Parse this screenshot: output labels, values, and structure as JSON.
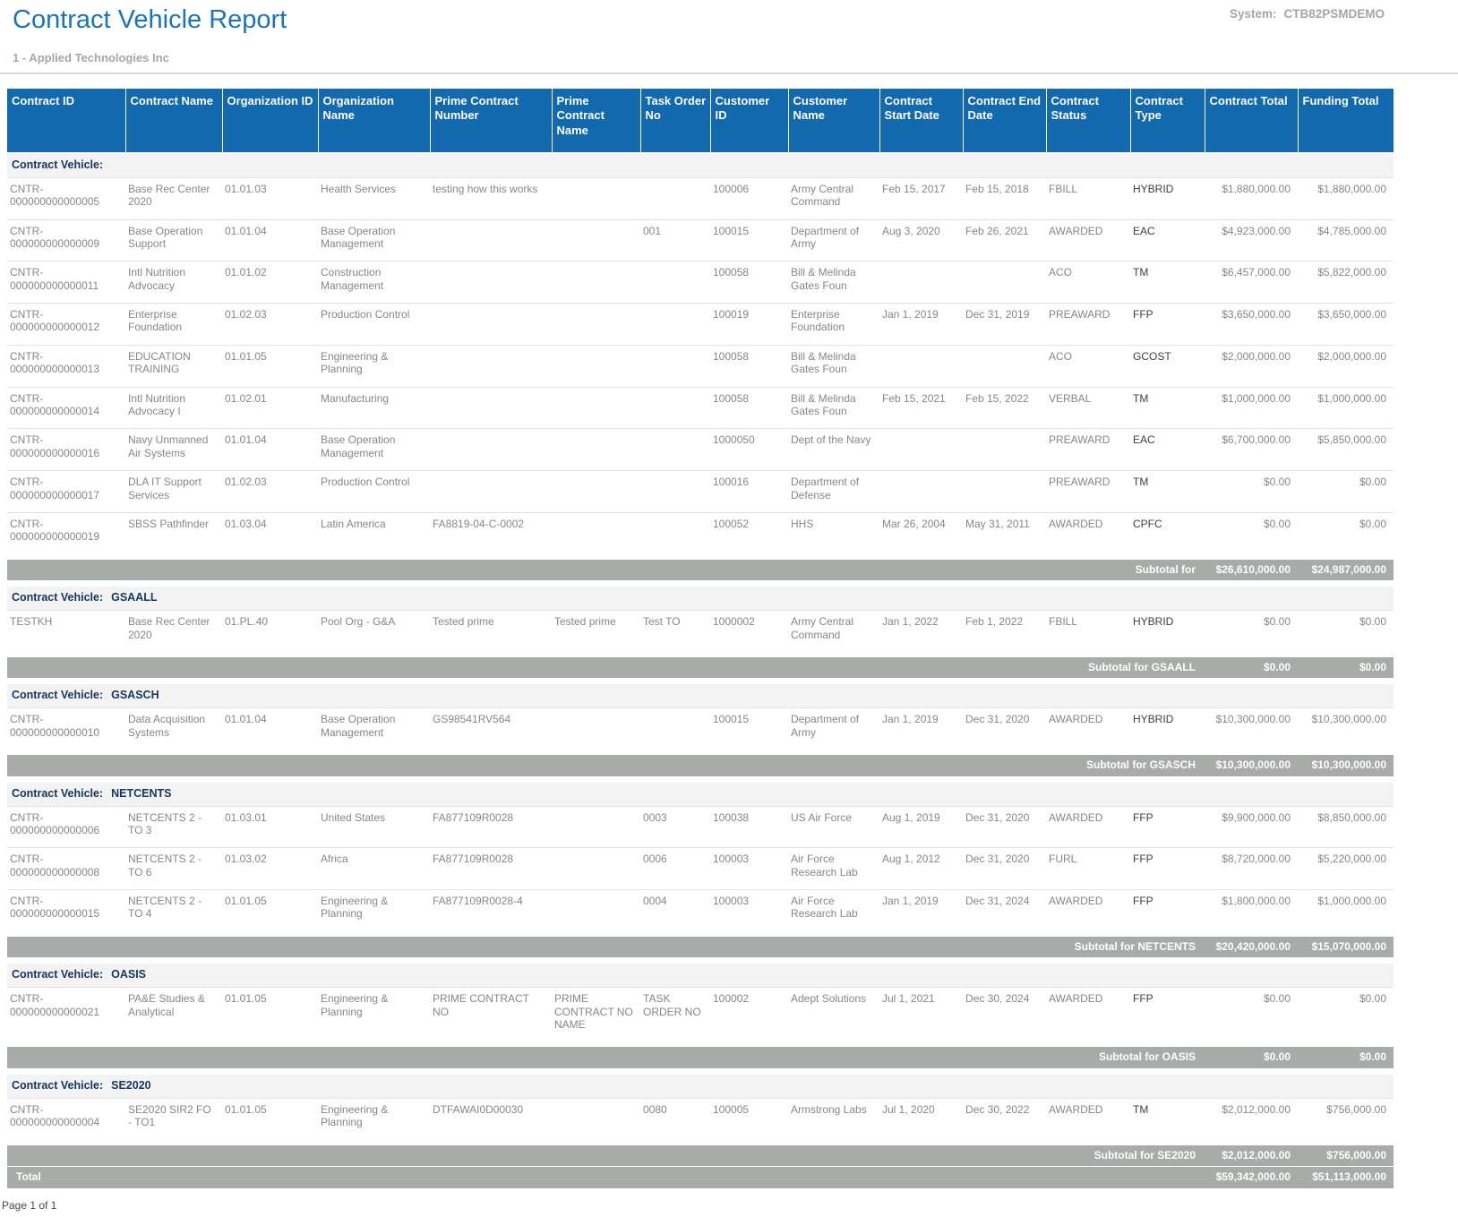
{
  "page": {
    "title": "Contract Vehicle Report",
    "system_label": "System:",
    "system_value": "CTB82PSMDEMO",
    "subtitle": "1 - Applied Technologies Inc",
    "footer": "Page 1 of 1"
  },
  "colors": {
    "title_blue": "#1B75BC",
    "header_blue": "#1269AD",
    "subtotal_gray": "#A8ACA8",
    "group_header_navy": "#16365C",
    "body_text_gray": "#878787"
  },
  "table": {
    "group_label": "Contract Vehicle:",
    "total_label": "Total",
    "columns": [
      "Contract ID",
      "Contract Name",
      "Organization ID",
      "Organization Name",
      "Prime Contract Number",
      "Prime Contract Name",
      "Task Order No",
      "Customer ID",
      "Customer Name",
      "Contract Start Date",
      "Contract End Date",
      "Contract Status",
      "Contract Type",
      "Contract Total",
      "Funding Total"
    ],
    "groups": [
      {
        "vehicle": "",
        "subtotal_label": "Subtotal for",
        "subtotal": [
          "$26,610,000.00",
          "$24,987,000.00"
        ],
        "rows": [
          [
            "CNTR-000000000000005",
            "Base Rec Center 2020",
            "01.01.03",
            "Health Services",
            "testing how this works",
            "",
            "",
            "100006",
            "Army Central Command",
            "Feb 15, 2017",
            "Feb 15, 2018",
            "FBILL",
            "HYBRID",
            "$1,880,000.00",
            "$1,880,000.00"
          ],
          [
            "CNTR-000000000000009",
            "Base Operation Support",
            "01.01.04",
            "Base Operation Management",
            "",
            "",
            "001",
            "100015",
            "Department of Army",
            "Aug 3, 2020",
            "Feb 26, 2021",
            "AWARDED",
            "EAC",
            "$4,923,000.00",
            "$4,785,000.00"
          ],
          [
            "CNTR-000000000000011",
            "Intl Nutrition Advocacy",
            "01.01.02",
            "Construction Management",
            "",
            "",
            "",
            "100058",
            "Bill & Melinda Gates Foun",
            "",
            "",
            "ACO",
            "TM",
            "$6,457,000.00",
            "$5,822,000.00"
          ],
          [
            "CNTR-000000000000012",
            "Enterprise Foundation",
            "01.02.03",
            "Production Control",
            "",
            "",
            "",
            "100019",
            "Enterprise Foundation",
            "Jan 1, 2019",
            "Dec 31, 2019",
            "PREAWARD",
            "FFP",
            "$3,650,000.00",
            "$3,650,000.00"
          ],
          [
            "CNTR-000000000000013",
            "EDUCATION TRAINING",
            "01.01.05",
            "Engineering & Planning",
            "",
            "",
            "",
            "100058",
            "Bill & Melinda Gates Foun",
            "",
            "",
            "ACO",
            "GCOST",
            "$2,000,000.00",
            "$2,000,000.00"
          ],
          [
            "CNTR-000000000000014",
            "Intl Nutrition Advocacy I",
            "01.02.01",
            "Manufacturing",
            "",
            "",
            "",
            "100058",
            "Bill & Melinda Gates Foun",
            "Feb 15, 2021",
            "Feb 15, 2022",
            "VERBAL",
            "TM",
            "$1,000,000.00",
            "$1,000,000.00"
          ],
          [
            "CNTR-000000000000016",
            "Navy Unmanned Air Systems",
            "01.01.04",
            "Base Operation Management",
            "",
            "",
            "",
            "1000050",
            "Dept of the Navy",
            "",
            "",
            "PREAWARD",
            "EAC",
            "$6,700,000.00",
            "$5,850,000.00"
          ],
          [
            "CNTR-000000000000017",
            "DLA IT Support Services",
            "01.02.03",
            "Production Control",
            "",
            "",
            "",
            "100016",
            "Department of Defense",
            "",
            "",
            "PREAWARD",
            "TM",
            "$0.00",
            "$0.00"
          ],
          [
            "CNTR-000000000000019",
            "SBSS Pathfinder",
            "01.03.04",
            "Latin America",
            "FA8819-04-C-0002",
            "",
            "",
            "100052",
            "HHS",
            "Mar 26, 2004",
            "May 31, 2011",
            "AWARDED",
            "CPFC",
            "$0.00",
            "$0.00"
          ]
        ]
      },
      {
        "vehicle": "GSAALL",
        "subtotal_label": "Subtotal for GSAALL",
        "subtotal": [
          "$0.00",
          "$0.00"
        ],
        "rows": [
          [
            "TESTKH",
            "Base Rec Center 2020",
            "01.PL.40",
            "Pool Org - G&A",
            "Tested prime",
            "Tested prime",
            "Test TO",
            "1000002",
            "Army Central Command",
            "Jan 1, 2022",
            "Feb 1, 2022",
            "FBILL",
            "HYBRID",
            "$0.00",
            "$0.00"
          ]
        ]
      },
      {
        "vehicle": "GSASCH",
        "subtotal_label": "Subtotal for GSASCH",
        "subtotal": [
          "$10,300,000.00",
          "$10,300,000.00"
        ],
        "rows": [
          [
            "CNTR-000000000000010",
            "Data Acquisition Systems",
            "01.01.04",
            "Base Operation Management",
            "GS98541RV564",
            "",
            "",
            "100015",
            "Department of Army",
            "Jan 1, 2019",
            "Dec 31, 2020",
            "AWARDED",
            "HYBRID",
            "$10,300,000.00",
            "$10,300,000.00"
          ]
        ]
      },
      {
        "vehicle": "NETCENTS",
        "subtotal_label": "Subtotal for NETCENTS",
        "subtotal": [
          "$20,420,000.00",
          "$15,070,000.00"
        ],
        "rows": [
          [
            "CNTR-000000000000006",
            "NETCENTS 2 - TO 3",
            "01.03.01",
            "United States",
            "FA877109R0028",
            "",
            "0003",
            "100038",
            "US Air Force",
            "Aug 1, 2019",
            "Dec 31, 2020",
            "AWARDED",
            "FFP",
            "$9,900,000.00",
            "$8,850,000.00"
          ],
          [
            "CNTR-000000000000008",
            "NETCENTS 2 - TO 6",
            "01.03.02",
            "Africa",
            "FA877109R0028",
            "",
            "0006",
            "100003",
            "Air Force Research Lab",
            "Aug 1, 2012",
            "Dec 31, 2020",
            "FURL",
            "FFP",
            "$8,720,000.00",
            "$5,220,000.00"
          ],
          [
            "CNTR-000000000000015",
            "NETCENTS 2 - TO 4",
            "01.01.05",
            "Engineering & Planning",
            "FA877109R0028-4",
            "",
            "0004",
            "100003",
            "Air Force Research Lab",
            "Jan 1, 2019",
            "Dec 31, 2024",
            "AWARDED",
            "FFP",
            "$1,800,000.00",
            "$1,000,000.00"
          ]
        ]
      },
      {
        "vehicle": "OASIS",
        "subtotal_label": "Subtotal for OASIS",
        "subtotal": [
          "$0.00",
          "$0.00"
        ],
        "rows": [
          [
            "CNTR-000000000000021",
            "PA&E Studies & Analytical",
            "01.01.05",
            "Engineering & Planning",
            "PRIME CONTRACT NO",
            "PRIME CONTRACT NO NAME",
            "TASK ORDER NO",
            "100002",
            "Adept Solutions",
            "Jul 1, 2021",
            "Dec 30, 2024",
            "AWARDED",
            "FFP",
            "$0.00",
            "$0.00"
          ]
        ]
      },
      {
        "vehicle": "SE2020",
        "subtotal_label": "Subtotal for SE2020",
        "subtotal": [
          "$2,012,000.00",
          "$756,000.00"
        ],
        "rows": [
          [
            "CNTR-000000000000004",
            "SE2020 SIR2 FO - TO1",
            "01.01.05",
            "Engineering & Planning",
            "DTFAWAI0D00030",
            "",
            "0080",
            "100005",
            "Armstrong Labs",
            "Jul 1, 2020",
            "Dec 30, 2022",
            "AWARDED",
            "TM",
            "$2,012,000.00",
            "$756,000.00"
          ]
        ]
      }
    ],
    "total": [
      "$59,342,000.00",
      "$51,113,000.00"
    ]
  }
}
